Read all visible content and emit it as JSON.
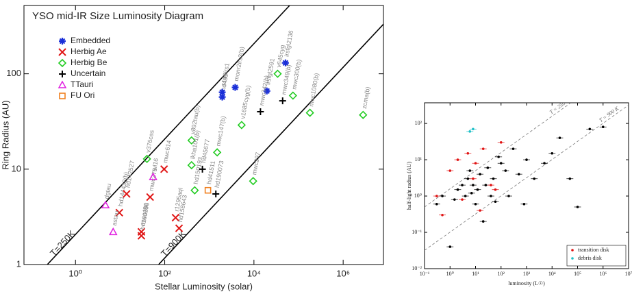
{
  "chart_data": [
    {
      "type": "scatter",
      "title": "YSO mid-IR Size Luminosity Diagram",
      "x_label": "Stellar Luminosity (solar)",
      "y_label": "Ring Radius (AU)",
      "log_x": true,
      "log_y": true,
      "legend": "upper left",
      "xlim": [
        0.07,
        8000000
      ],
      "ylim": [
        1,
        520
      ],
      "xticks": [
        {
          "value": 1,
          "label": "10⁰"
        },
        {
          "value": 100,
          "label": "10²"
        },
        {
          "value": 10000,
          "label": "10⁴"
        },
        {
          "value": 1000000,
          "label": "10⁶"
        }
      ],
      "yticks": [
        1,
        10,
        100
      ],
      "lines": [
        {
          "label": "T=250K",
          "x": [
            0.234,
            63000
          ],
          "y": [
            1,
            520
          ]
        },
        {
          "label": "T=900K",
          "x": [
            73,
            8000000
          ],
          "y": [
            1,
            331
          ]
        }
      ],
      "series": [
        {
          "name": "Embedded",
          "color": "#1a2fd8",
          "marker": "asterisk",
          "x": [
            1950,
            1950,
            3800,
            19500,
            51000
          ],
          "values": [
            57,
            64,
            72,
            66,
            130
          ],
          "labels": [
            "hd490",
            "s140irs1",
            "monr2irs3(b)",
            "irsfgl2591",
            "irsfgl2136"
          ]
        },
        {
          "name": "Herbig Ae",
          "color": "#e01414",
          "marker": "x",
          "x": [
            9.6,
            14,
            47,
            97,
            30,
            30,
            175,
            210
          ],
          "values": [
            3.5,
            5.5,
            5.1,
            10,
            2.2,
            2.0,
            3.1,
            2.4
          ],
          "labels": [
            "hd144432(b)",
            "hd142527",
            "mwc275",
            "mwc614",
            "mwc480",
            "hd163296",
            "r1295aql",
            "hd158643"
          ]
        },
        {
          "name": "Herbig Be",
          "color": "#22cc22",
          "marker": "diamond",
          "x": [
            40,
            400,
            400,
            470,
            1500,
            5300,
            9600,
            34000,
            75000,
            180000,
            2800000
          ],
          "values": [
            12.8,
            20,
            11,
            6,
            15,
            29,
            7.5,
            100,
            59,
            39,
            37
          ],
          "labels": [
            "v376cas",
            "v892tau(b)",
            "lkha101(b)",
            "hd150193",
            "mwc147(b)",
            "v1685cyg(b)",
            "mwc297",
            "v645cyg",
            "mwc300(b)",
            "mwc1080(b)",
            "zcma(b)"
          ]
        },
        {
          "name": "Uncertain",
          "color": "#000000",
          "marker": "plus",
          "x": [
            700,
            1400,
            14000,
            44000
          ],
          "values": [
            10,
            5.5,
            40,
            52
          ],
          "labels": [
            "hd45677",
            "hd190073",
            "mwc342(b)",
            "mwc349(b)"
          ]
        },
        {
          "name": "TTauri",
          "color": "#e020e0",
          "marker": "triangle",
          "x": [
            4.7,
            7,
            55
          ],
          "values": [
            4.2,
            2.2,
            8.3
          ],
          "labels": [
            "dgtau",
            "astau",
            "wl16"
          ]
        },
        {
          "name": "FU Ori",
          "color": "#f08020",
          "marker": "square",
          "x": [
            930
          ],
          "values": [
            6
          ],
          "labels": [
            "hd41511"
          ]
        }
      ]
    },
    {
      "type": "scatter",
      "x_label": "luminosity (L☉)",
      "y_label": "half-light radius (AU)",
      "log_x": true,
      "log_y": true,
      "legend": "lower right",
      "xlim": [
        0.1,
        10000000
      ],
      "ylim": [
        0.01,
        370
      ],
      "xticks": [
        {
          "value": 0.1,
          "label": "10⁻¹"
        },
        {
          "value": 1,
          "label": "10⁰"
        },
        {
          "value": 10,
          "label": "10¹"
        },
        {
          "value": 100,
          "label": "10²"
        },
        {
          "value": 1000,
          "label": "10³"
        },
        {
          "value": 10000,
          "label": "10⁴"
        },
        {
          "value": 100000,
          "label": "10⁵"
        },
        {
          "value": 1000000,
          "label": "10⁶"
        },
        {
          "value": 10000000,
          "label": "10⁷"
        }
      ],
      "yticks": [
        {
          "value": 0.01,
          "label": "10⁻²"
        },
        {
          "value": 0.1,
          "label": "10⁻¹"
        },
        {
          "value": 1,
          "label": "10⁰"
        },
        {
          "value": 10,
          "label": "10¹"
        },
        {
          "value": 100,
          "label": "10²"
        }
      ],
      "lines": [
        {
          "label": "T = 250 K",
          "x": [
            0.1,
            55000
          ],
          "y": [
            0.5,
            370
          ]
        },
        {
          "label": "T = 900 K",
          "x": [
            0.1,
            10000000
          ],
          "y": [
            0.032,
            320
          ]
        }
      ],
      "series": [
        {
          "color": "#000000",
          "marker": "dot",
          "x": [
            0.3,
            0.5,
            1,
            1.5,
            2,
            3,
            4,
            5,
            6,
            7,
            8,
            10,
            12,
            15,
            20,
            25,
            30,
            40,
            50,
            60,
            80,
            100,
            150,
            200,
            300,
            500,
            800,
            1000,
            2000,
            5000,
            10000,
            20000,
            50000,
            100000,
            300000,
            1000000
          ],
          "values": [
            0.6,
            1,
            0.04,
            0.8,
            1.5,
            2,
            1,
            3,
            5,
            1.2,
            2,
            0.6,
            1.5,
            4,
            0.2,
            2,
            6,
            1,
            3,
            0.7,
            12,
            8,
            5,
            1,
            20,
            4,
            0.6,
            10,
            3,
            8,
            15,
            40,
            3,
            0.5,
            70,
            80
          ]
        },
        {
          "name": "transition disk",
          "color": "#e01414",
          "marker": "dot",
          "x": [
            0.3,
            0.5,
            1,
            2,
            3,
            5,
            8,
            10,
            15,
            20,
            40,
            60,
            100
          ],
          "values": [
            1,
            0.3,
            5,
            10,
            0.8,
            15,
            3,
            8,
            0.4,
            20,
            2,
            1.5,
            30
          ]
        },
        {
          "name": "debris disk",
          "color": "#20c0c8",
          "marker": "dot",
          "x": [
            6,
            8
          ],
          "values": [
            60,
            70
          ]
        }
      ]
    }
  ]
}
